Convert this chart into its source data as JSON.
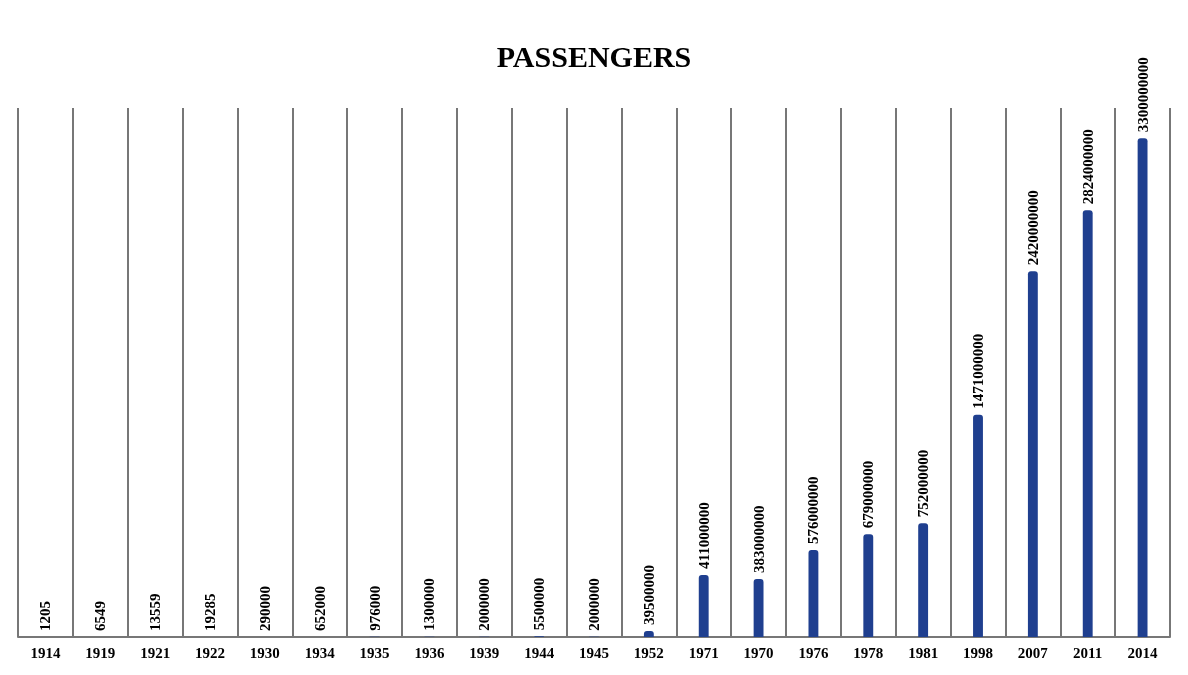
{
  "chart_data": {
    "type": "bar",
    "title": "PASSENGERS",
    "categories": [
      "1914",
      "1919",
      "1921",
      "1922",
      "1930",
      "1934",
      "1935",
      "1936",
      "1939",
      "1944",
      "1945",
      "1952",
      "1971",
      "1970",
      "1976",
      "1978",
      "1981",
      "1998",
      "2007",
      "2011",
      "2014"
    ],
    "values": [
      1205,
      6549,
      13559,
      19285,
      290000,
      652000,
      976000,
      1300000,
      2000000,
      5500000,
      2000000,
      39500000,
      411000000,
      383000000,
      576000000,
      679000000,
      752000000,
      1471000000,
      2420000000,
      2824000000,
      3300000000
    ],
    "color": "#1f3f8f",
    "data_labels": true,
    "grid": "x"
  }
}
